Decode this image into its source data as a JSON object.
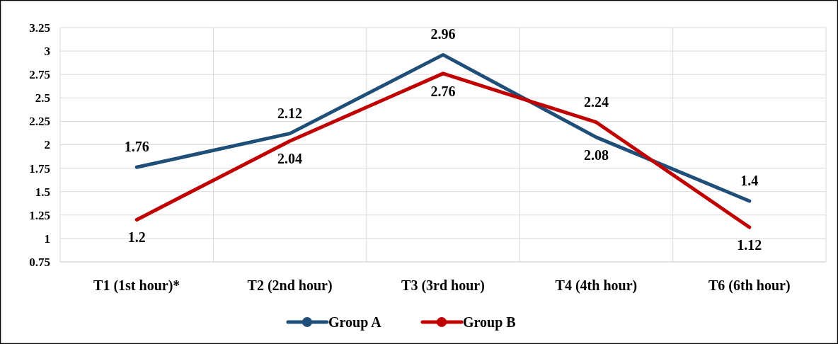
{
  "chart_data": {
    "type": "line",
    "categories": [
      "T1 (1st hour)*",
      "T2 (2nd hour)",
      "T3 (3rd hour)",
      "T4 (4th hour)",
      "T6 (6th hour)"
    ],
    "series": [
      {
        "name": "Group A",
        "color": "#1f4e79",
        "values": [
          1.76,
          2.12,
          2.96,
          2.08,
          1.4
        ]
      },
      {
        "name": "Group B",
        "color": "#c00000",
        "values": [
          1.2,
          2.04,
          2.76,
          2.24,
          1.12
        ]
      }
    ],
    "ylim": [
      0.75,
      3.25
    ],
    "yticks": [
      0.75,
      1,
      1.25,
      1.5,
      1.75,
      2,
      2.25,
      2.5,
      2.75,
      3,
      3.25
    ],
    "grid": true,
    "legend": "bottom",
    "data_labels": true,
    "marker": "none",
    "line_style": "solid"
  }
}
